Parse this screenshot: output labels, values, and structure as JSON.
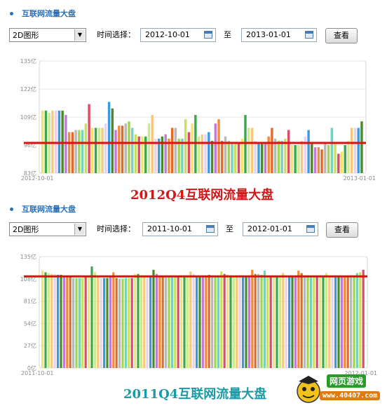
{
  "panels": [
    {
      "title": "互联网流量大盘",
      "view_select": "2D图形",
      "time_label": "时间选择：",
      "from_date": "2012-10-01",
      "to_label": "至",
      "to_date": "2013-01-01",
      "query_button": "查看",
      "caption": "2012Q4互联网流量大盘"
    },
    {
      "title": "互联网流量大盘",
      "view_select": "2D图形",
      "time_label": "时间选择：",
      "from_date": "2011-10-01",
      "to_label": "至",
      "to_date": "2012-01-01",
      "query_button": "查看",
      "caption": "2011Q4互联网流量大盘"
    }
  ],
  "watermark": {
    "line1": "网页游戏",
    "line2": "www.40407.com"
  },
  "colors": {
    "title_blue": "#2a6fb5",
    "caption1": "#d01818",
    "caption2": "#1a9aa6",
    "ref_line": "#e01010"
  },
  "chart_data": [
    {
      "type": "bar",
      "x_start_label": "2012-10-01",
      "x_end_label": "2013-01-01",
      "y_ticks": [
        "135亿",
        "122亿",
        "109亿",
        "96亿",
        "83亿"
      ],
      "ylim": [
        83,
        135
      ],
      "grid": true,
      "reference_line": 97,
      "values": [
        112,
        112,
        111,
        112,
        112,
        112,
        112,
        110,
        102,
        102,
        103,
        103,
        103,
        106,
        115,
        104,
        104,
        104,
        104,
        106,
        116,
        113,
        103,
        105,
        105,
        106,
        107,
        104,
        101,
        100,
        100,
        100,
        106,
        110,
        99,
        99,
        100,
        101,
        99,
        104,
        104,
        99,
        99,
        108,
        102,
        106,
        110,
        100,
        101,
        101,
        102,
        98,
        106,
        108,
        98,
        100,
        98,
        97,
        97,
        97,
        99,
        110,
        104,
        104,
        98,
        97,
        97,
        97,
        100,
        104,
        99,
        98,
        98,
        99,
        103,
        96,
        96,
        96,
        98,
        100,
        103,
        97,
        95,
        95,
        94,
        97,
        96,
        104,
        97,
        92,
        93,
        96,
        98,
        104,
        104,
        104,
        107
      ]
    },
    {
      "type": "bar",
      "x_start_label": "2011-10-01",
      "x_end_label": "2012-01-01",
      "y_ticks": [
        "135亿",
        "108亿",
        "81亿",
        "54亿",
        "27亿",
        "0亿"
      ],
      "ylim": [
        0,
        135
      ],
      "grid": true,
      "reference_line": 111,
      "values": [
        118,
        116,
        115,
        114,
        114,
        113,
        113,
        112,
        112,
        111,
        109,
        109,
        109,
        109,
        110,
        110,
        123,
        116,
        110,
        109,
        109,
        109,
        110,
        116,
        109,
        108,
        108,
        109,
        109,
        109,
        114,
        114,
        110,
        110,
        110,
        110,
        119,
        114,
        110,
        110,
        110,
        110,
        111,
        111,
        110,
        110,
        110,
        110,
        117,
        114,
        110,
        110,
        110,
        112,
        113,
        110,
        110,
        110,
        117,
        114,
        113,
        112,
        110,
        110,
        110,
        110,
        110,
        110,
        119,
        114,
        114,
        113,
        118,
        112,
        110,
        110,
        110,
        110,
        115,
        112,
        112,
        111,
        112,
        118,
        115,
        112,
        112,
        112,
        110,
        110,
        110,
        110,
        115,
        112,
        112,
        112,
        112,
        110,
        110,
        110,
        110,
        110,
        115,
        116,
        119
      ]
    }
  ]
}
